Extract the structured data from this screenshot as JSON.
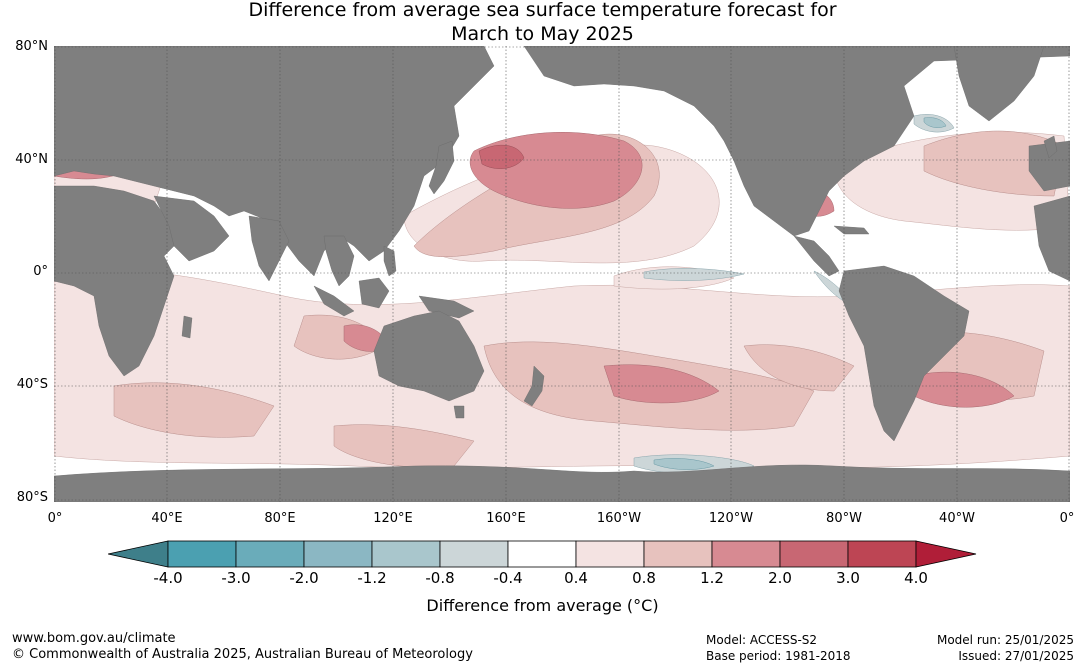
{
  "title_line1": "Difference from average sea surface temperature forecast for",
  "title_line2": "March to May 2025",
  "lat_labels": [
    "80°N",
    "40°N",
    "0°",
    "40°S",
    "80°S"
  ],
  "lon_labels": [
    "0°",
    "40°E",
    "80°E",
    "120°E",
    "160°E",
    "160°W",
    "120°W",
    "80°W",
    "40°W",
    "0°"
  ],
  "colorbar": {
    "title": "Difference from average (°C)",
    "ticks": [
      "-4.0",
      "-3.0",
      "-2.0",
      "-1.2",
      "-0.8",
      "-0.4",
      "0.4",
      "0.8",
      "1.2",
      "2.0",
      "3.0",
      "4.0"
    ],
    "colors": [
      "#3e7f8a",
      "#4ba0b1",
      "#6aacba",
      "#8bb7c3",
      "#a9c6cc",
      "#ccd6d8",
      "#ffffff",
      "#f4e3e2",
      "#e7c2be",
      "#d78a92",
      "#c86773",
      "#bd4554",
      "#b01e38"
    ]
  },
  "footer": {
    "url": "www.bom.gov.au/climate",
    "copyright": "© Commonwealth of Australia 2025, Australian Bureau of Meteorology",
    "model": "Model: ACCESS-S2",
    "base_period": "Base period: 1981-2018",
    "model_run": "Model run: 25/01/2025",
    "issued": "Issued: 27/01/2025"
  },
  "land_color": "#7f7f7f"
}
